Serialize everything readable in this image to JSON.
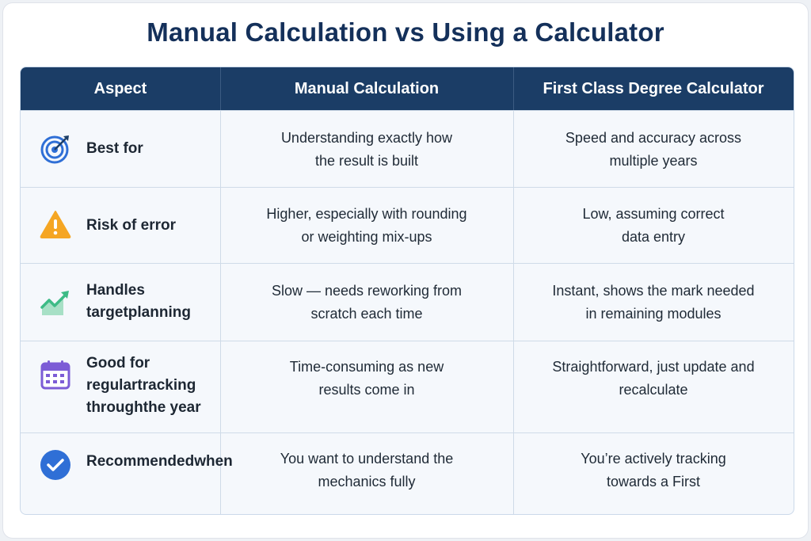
{
  "title": "Manual Calculation vs Using a Calculator",
  "headers": [
    "Aspect",
    "Manual Calculation",
    "First Class Degree Calculator"
  ],
  "rows": [
    {
      "icon": "target-icon",
      "aspect": "Best for",
      "manual": "Understanding exactly how\nthe result is built",
      "calculator": "Speed and accuracy across\nmultiple years"
    },
    {
      "icon": "warning-icon",
      "aspect": "Risk of error",
      "manual": "Higher, especially with rounding\nor weighting mix-ups",
      "calculator": "Low, assuming correct\ndata entry"
    },
    {
      "icon": "trend-up-icon",
      "aspect": "Handles target\nplanning",
      "manual": "Slow — needs reworking from\nscratch each time",
      "calculator": "Instant, shows the mark needed\nin remaining modules"
    },
    {
      "icon": "calendar-icon",
      "aspect": "Good for regular\ntracking through\nthe year",
      "manual": "Time-consuming as new\nresults come in",
      "calculator": "Straightforward, just update and\nrecalculate"
    },
    {
      "icon": "check-circle-icon",
      "aspect": "Recommended\nwhen",
      "manual": "You want to understand the\nmechanics fully",
      "calculator": "You’re actively tracking\ntowards a First"
    }
  ],
  "colors": {
    "header_bg": "#1b3d66",
    "title": "#14305a",
    "accent_blue": "#2f6fd6",
    "warning": "#f5a623",
    "trend": "#3dbb86",
    "calendar": "#7c5cd6"
  }
}
